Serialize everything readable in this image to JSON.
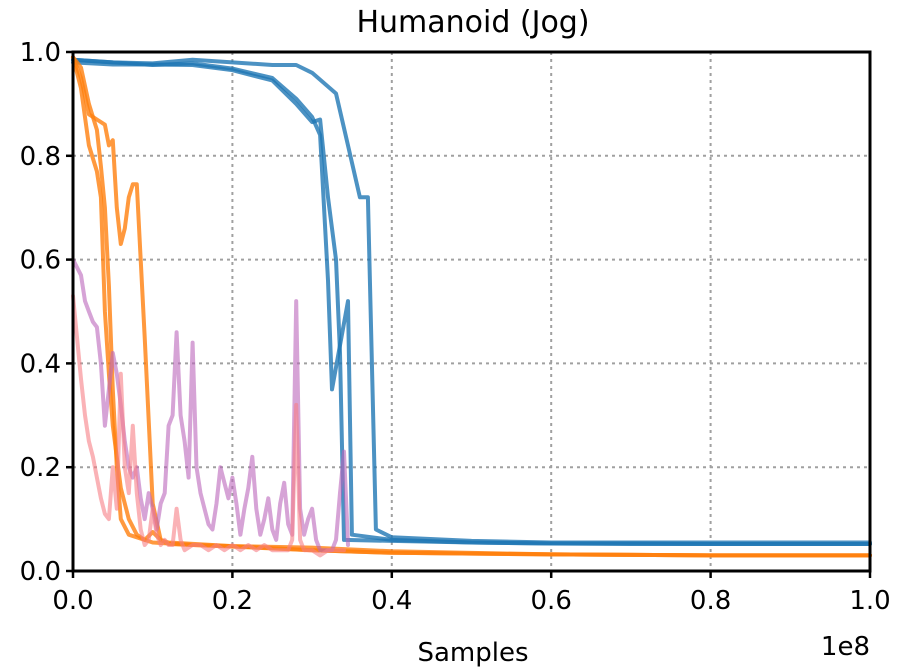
{
  "chart_data": {
    "type": "line",
    "title": "Humanoid (Jog)",
    "xlabel": "Samples",
    "ylabel": "",
    "x_offset_text": "1e8",
    "xlim": [
      0.0,
      1.0
    ],
    "ylim": [
      0.0,
      1.0
    ],
    "x_ticks": [
      0.0,
      0.2,
      0.4,
      0.6,
      0.8,
      1.0
    ],
    "y_ticks": [
      0.0,
      0.2,
      0.4,
      0.6,
      0.8,
      1.0
    ],
    "x_tick_labels": [
      "0.0",
      "0.2",
      "0.4",
      "0.6",
      "0.8",
      "1.0"
    ],
    "y_tick_labels": [
      "0.0",
      "0.2",
      "0.4",
      "0.6",
      "0.8",
      "1.0"
    ],
    "grid": true,
    "legend": "none",
    "series": [
      {
        "color": "#1f77b4",
        "opacity": 0.8,
        "points": [
          [
            0.0,
            0.985
          ],
          [
            0.05,
            0.98
          ],
          [
            0.1,
            0.978
          ],
          [
            0.15,
            0.985
          ],
          [
            0.2,
            0.98
          ],
          [
            0.25,
            0.975
          ],
          [
            0.28,
            0.975
          ],
          [
            0.3,
            0.96
          ],
          [
            0.33,
            0.92
          ],
          [
            0.345,
            0.82
          ],
          [
            0.36,
            0.72
          ],
          [
            0.37,
            0.72
          ],
          [
            0.38,
            0.08
          ],
          [
            0.4,
            0.065
          ],
          [
            0.5,
            0.058
          ],
          [
            0.6,
            0.055
          ],
          [
            0.7,
            0.055
          ],
          [
            0.8,
            0.055
          ],
          [
            0.9,
            0.055
          ],
          [
            1.0,
            0.055
          ]
        ]
      },
      {
        "color": "#1f77b4",
        "opacity": 0.8,
        "points": [
          [
            0.0,
            0.98
          ],
          [
            0.05,
            0.976
          ],
          [
            0.1,
            0.976
          ],
          [
            0.15,
            0.975
          ],
          [
            0.2,
            0.965
          ],
          [
            0.25,
            0.945
          ],
          [
            0.28,
            0.9
          ],
          [
            0.3,
            0.865
          ],
          [
            0.31,
            0.87
          ],
          [
            0.32,
            0.72
          ],
          [
            0.33,
            0.6
          ],
          [
            0.335,
            0.42
          ],
          [
            0.34,
            0.06
          ],
          [
            0.4,
            0.058
          ],
          [
            0.5,
            0.055
          ],
          [
            0.6,
            0.053
          ],
          [
            0.7,
            0.052
          ],
          [
            0.8,
            0.052
          ],
          [
            0.9,
            0.052
          ],
          [
            1.0,
            0.052
          ]
        ]
      },
      {
        "color": "#1f77b4",
        "opacity": 0.8,
        "points": [
          [
            0.0,
            0.985
          ],
          [
            0.05,
            0.98
          ],
          [
            0.1,
            0.975
          ],
          [
            0.15,
            0.978
          ],
          [
            0.2,
            0.968
          ],
          [
            0.25,
            0.95
          ],
          [
            0.28,
            0.91
          ],
          [
            0.3,
            0.875
          ],
          [
            0.31,
            0.84
          ],
          [
            0.32,
            0.56
          ],
          [
            0.325,
            0.35
          ],
          [
            0.345,
            0.52
          ],
          [
            0.35,
            0.07
          ],
          [
            0.4,
            0.06
          ],
          [
            0.5,
            0.055
          ],
          [
            0.6,
            0.053
          ],
          [
            0.7,
            0.053
          ],
          [
            0.8,
            0.052
          ],
          [
            0.9,
            0.052
          ],
          [
            1.0,
            0.052
          ]
        ]
      },
      {
        "color": "#ff7f0e",
        "opacity": 0.8,
        "points": [
          [
            0.0,
            0.99
          ],
          [
            0.01,
            0.97
          ],
          [
            0.02,
            0.9
          ],
          [
            0.03,
            0.85
          ],
          [
            0.035,
            0.78
          ],
          [
            0.04,
            0.7
          ],
          [
            0.045,
            0.55
          ],
          [
            0.05,
            0.35
          ],
          [
            0.055,
            0.2
          ],
          [
            0.06,
            0.1
          ],
          [
            0.07,
            0.07
          ],
          [
            0.1,
            0.055
          ],
          [
            0.15,
            0.05
          ],
          [
            0.2,
            0.048
          ],
          [
            0.3,
            0.04
          ],
          [
            0.4,
            0.035
          ],
          [
            0.6,
            0.032
          ],
          [
            0.8,
            0.03
          ],
          [
            1.0,
            0.03
          ]
        ]
      },
      {
        "color": "#ff7f0e",
        "opacity": 0.8,
        "points": [
          [
            0.0,
            0.99
          ],
          [
            0.01,
            0.95
          ],
          [
            0.02,
            0.88
          ],
          [
            0.03,
            0.87
          ],
          [
            0.04,
            0.86
          ],
          [
            0.045,
            0.82
          ],
          [
            0.05,
            0.83
          ],
          [
            0.055,
            0.7
          ],
          [
            0.06,
            0.63
          ],
          [
            0.065,
            0.66
          ],
          [
            0.07,
            0.72
          ],
          [
            0.075,
            0.745
          ],
          [
            0.08,
            0.745
          ],
          [
            0.09,
            0.45
          ],
          [
            0.1,
            0.13
          ],
          [
            0.11,
            0.06
          ],
          [
            0.12,
            0.055
          ],
          [
            0.2,
            0.048
          ],
          [
            0.3,
            0.045
          ],
          [
            0.4,
            0.038
          ],
          [
            0.6,
            0.032
          ],
          [
            0.8,
            0.03
          ],
          [
            1.0,
            0.03
          ]
        ]
      },
      {
        "color": "#ff7f0e",
        "opacity": 0.8,
        "points": [
          [
            0.0,
            0.99
          ],
          [
            0.01,
            0.93
          ],
          [
            0.02,
            0.82
          ],
          [
            0.03,
            0.77
          ],
          [
            0.035,
            0.72
          ],
          [
            0.04,
            0.5
          ],
          [
            0.045,
            0.38
          ],
          [
            0.05,
            0.28
          ],
          [
            0.06,
            0.16
          ],
          [
            0.07,
            0.1
          ],
          [
            0.08,
            0.07
          ],
          [
            0.09,
            0.06
          ],
          [
            0.1,
            0.075
          ],
          [
            0.11,
            0.06
          ],
          [
            0.12,
            0.052
          ],
          [
            0.2,
            0.047
          ],
          [
            0.3,
            0.04
          ],
          [
            0.4,
            0.035
          ],
          [
            0.6,
            0.032
          ],
          [
            0.8,
            0.03
          ],
          [
            1.0,
            0.03
          ]
        ]
      },
      {
        "color": "#bb66bb",
        "opacity": 0.6,
        "points": [
          [
            0.0,
            0.6
          ],
          [
            0.01,
            0.57
          ],
          [
            0.015,
            0.52
          ],
          [
            0.02,
            0.5
          ],
          [
            0.025,
            0.48
          ],
          [
            0.03,
            0.47
          ],
          [
            0.035,
            0.4
          ],
          [
            0.04,
            0.28
          ],
          [
            0.045,
            0.35
          ],
          [
            0.05,
            0.42
          ],
          [
            0.055,
            0.38
          ],
          [
            0.06,
            0.32
          ],
          [
            0.065,
            0.25
          ],
          [
            0.07,
            0.2
          ],
          [
            0.075,
            0.18
          ],
          [
            0.08,
            0.2
          ],
          [
            0.085,
            0.14
          ],
          [
            0.09,
            0.1
          ],
          [
            0.095,
            0.15
          ],
          [
            0.1,
            0.12
          ],
          [
            0.105,
            0.08
          ],
          [
            0.11,
            0.13
          ],
          [
            0.115,
            0.15
          ],
          [
            0.12,
            0.28
          ],
          [
            0.125,
            0.3
          ],
          [
            0.13,
            0.46
          ],
          [
            0.135,
            0.3
          ],
          [
            0.14,
            0.25
          ],
          [
            0.145,
            0.18
          ],
          [
            0.15,
            0.44
          ],
          [
            0.155,
            0.2
          ],
          [
            0.16,
            0.15
          ],
          [
            0.165,
            0.12
          ],
          [
            0.17,
            0.09
          ],
          [
            0.175,
            0.08
          ],
          [
            0.18,
            0.13
          ],
          [
            0.185,
            0.2
          ],
          [
            0.19,
            0.17
          ],
          [
            0.195,
            0.14
          ],
          [
            0.2,
            0.18
          ],
          [
            0.205,
            0.13
          ],
          [
            0.21,
            0.07
          ],
          [
            0.215,
            0.12
          ],
          [
            0.22,
            0.16
          ],
          [
            0.225,
            0.22
          ],
          [
            0.23,
            0.12
          ],
          [
            0.235,
            0.07
          ],
          [
            0.24,
            0.1
          ],
          [
            0.245,
            0.14
          ],
          [
            0.25,
            0.08
          ],
          [
            0.255,
            0.06
          ],
          [
            0.26,
            0.13
          ],
          [
            0.265,
            0.17
          ],
          [
            0.27,
            0.09
          ],
          [
            0.275,
            0.07
          ],
          [
            0.28,
            0.52
          ],
          [
            0.285,
            0.12
          ],
          [
            0.29,
            0.07
          ],
          [
            0.295,
            0.1
          ],
          [
            0.3,
            0.12
          ],
          [
            0.305,
            0.06
          ],
          [
            0.31,
            0.04
          ],
          [
            0.315,
            0.04
          ],
          [
            0.32,
            0.04
          ],
          [
            0.325,
            0.04
          ],
          [
            0.33,
            0.06
          ],
          [
            0.335,
            0.15
          ],
          [
            0.34,
            0.23
          ],
          [
            0.345,
            0.05
          ]
        ]
      },
      {
        "color": "#f77f85",
        "opacity": 0.6,
        "points": [
          [
            0.0,
            0.53
          ],
          [
            0.005,
            0.45
          ],
          [
            0.01,
            0.37
          ],
          [
            0.015,
            0.3
          ],
          [
            0.02,
            0.25
          ],
          [
            0.025,
            0.22
          ],
          [
            0.03,
            0.18
          ],
          [
            0.035,
            0.14
          ],
          [
            0.04,
            0.11
          ],
          [
            0.045,
            0.1
          ],
          [
            0.05,
            0.2
          ],
          [
            0.055,
            0.12
          ],
          [
            0.06,
            0.38
          ],
          [
            0.065,
            0.2
          ],
          [
            0.07,
            0.15
          ],
          [
            0.075,
            0.28
          ],
          [
            0.08,
            0.15
          ],
          [
            0.085,
            0.08
          ],
          [
            0.09,
            0.05
          ],
          [
            0.095,
            0.06
          ],
          [
            0.1,
            0.12
          ],
          [
            0.105,
            0.07
          ],
          [
            0.11,
            0.05
          ],
          [
            0.115,
            0.06
          ],
          [
            0.12,
            0.05
          ],
          [
            0.125,
            0.05
          ],
          [
            0.13,
            0.12
          ],
          [
            0.135,
            0.06
          ],
          [
            0.14,
            0.04
          ],
          [
            0.15,
            0.05
          ],
          [
            0.16,
            0.05
          ],
          [
            0.17,
            0.04
          ],
          [
            0.18,
            0.05
          ],
          [
            0.19,
            0.04
          ],
          [
            0.2,
            0.05
          ],
          [
            0.21,
            0.04
          ],
          [
            0.22,
            0.05
          ],
          [
            0.23,
            0.04
          ],
          [
            0.24,
            0.05
          ],
          [
            0.25,
            0.04
          ],
          [
            0.26,
            0.04
          ],
          [
            0.27,
            0.04
          ],
          [
            0.275,
            0.06
          ],
          [
            0.28,
            0.32
          ],
          [
            0.285,
            0.06
          ],
          [
            0.29,
            0.04
          ],
          [
            0.3,
            0.04
          ],
          [
            0.31,
            0.03
          ],
          [
            0.32,
            0.04
          ],
          [
            0.33,
            0.04
          ],
          [
            0.34,
            0.04
          ]
        ]
      }
    ]
  }
}
